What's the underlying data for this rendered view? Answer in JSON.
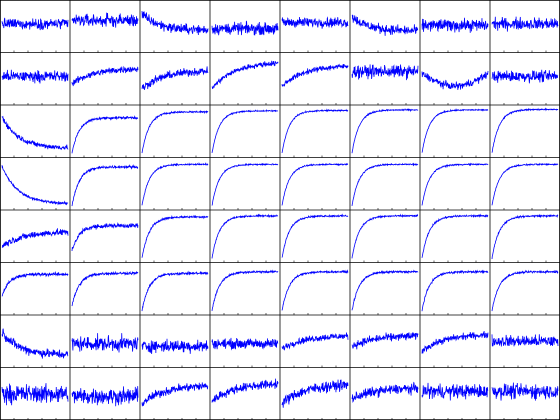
{
  "chart_data": {
    "type": "line",
    "rows": 8,
    "cols": 8,
    "line_color": "#0000ff",
    "axis_color": "#000000",
    "background": "#ffffff",
    "grid": false,
    "tick_labels": false,
    "title": "",
    "xlabel": "",
    "ylabel": "",
    "x_range": [
      0,
      1
    ],
    "y_range": [
      0,
      1
    ],
    "points_per_panel": 220,
    "panels": [
      {
        "row": 0,
        "col": 0,
        "shape": "flat",
        "level": 0.55,
        "amp": 0.32,
        "end": 0.55
      },
      {
        "row": 0,
        "col": 1,
        "shape": "flat",
        "level": 0.62,
        "amp": 0.38,
        "end": 0.62
      },
      {
        "row": 0,
        "col": 2,
        "shape": "decline",
        "level": 0.75,
        "amp": 0.3,
        "end": 0.42
      },
      {
        "row": 0,
        "col": 3,
        "shape": "flat",
        "level": 0.45,
        "amp": 0.35,
        "end": 0.45
      },
      {
        "row": 0,
        "col": 4,
        "shape": "flat",
        "level": 0.58,
        "amp": 0.3,
        "end": 0.58
      },
      {
        "row": 0,
        "col": 5,
        "shape": "decline",
        "level": 0.7,
        "amp": 0.3,
        "end": 0.4
      },
      {
        "row": 0,
        "col": 6,
        "shape": "flat",
        "level": 0.52,
        "amp": 0.38,
        "end": 0.52
      },
      {
        "row": 0,
        "col": 7,
        "shape": "flat",
        "level": 0.55,
        "amp": 0.36,
        "end": 0.55
      },
      {
        "row": 1,
        "col": 0,
        "shape": "flat",
        "level": 0.55,
        "amp": 0.34,
        "end": 0.55
      },
      {
        "row": 1,
        "col": 1,
        "shape": "rise",
        "level": 0.4,
        "amp": 0.2,
        "end": 0.72
      },
      {
        "row": 1,
        "col": 2,
        "shape": "rise",
        "level": 0.3,
        "amp": 0.24,
        "end": 0.68
      },
      {
        "row": 1,
        "col": 3,
        "shape": "rise",
        "level": 0.3,
        "amp": 0.16,
        "end": 0.85
      },
      {
        "row": 1,
        "col": 4,
        "shape": "rise",
        "level": 0.35,
        "amp": 0.16,
        "end": 0.78
      },
      {
        "row": 1,
        "col": 5,
        "shape": "flat",
        "level": 0.65,
        "amp": 0.38,
        "end": 0.65
      },
      {
        "row": 1,
        "col": 6,
        "shape": "dip",
        "level": 0.6,
        "amp": 0.22,
        "end": 0.6
      },
      {
        "row": 1,
        "col": 7,
        "shape": "flat",
        "level": 0.55,
        "amp": 0.34,
        "end": 0.55
      },
      {
        "row": 2,
        "col": 0,
        "shape": "decline",
        "level": 0.8,
        "amp": 0.16,
        "end": 0.15
      },
      {
        "row": 2,
        "col": 1,
        "shape": "sat",
        "level": 0.05,
        "amp": 0.08,
        "end": 0.78
      },
      {
        "row": 2,
        "col": 2,
        "shape": "sat",
        "level": 0.05,
        "amp": 0.05,
        "end": 0.9
      },
      {
        "row": 2,
        "col": 3,
        "shape": "sat",
        "level": 0.05,
        "amp": 0.04,
        "end": 0.92
      },
      {
        "row": 2,
        "col": 4,
        "shape": "sat",
        "level": 0.05,
        "amp": 0.04,
        "end": 0.93
      },
      {
        "row": 2,
        "col": 5,
        "shape": "sat",
        "level": 0.05,
        "amp": 0.04,
        "end": 0.94
      },
      {
        "row": 2,
        "col": 6,
        "shape": "sat",
        "level": 0.05,
        "amp": 0.04,
        "end": 0.94
      },
      {
        "row": 2,
        "col": 7,
        "shape": "sat",
        "level": 0.05,
        "amp": 0.04,
        "end": 0.95
      },
      {
        "row": 3,
        "col": 0,
        "shape": "decline",
        "level": 0.85,
        "amp": 0.08,
        "end": 0.08
      },
      {
        "row": 3,
        "col": 1,
        "shape": "sat",
        "level": 0.05,
        "amp": 0.08,
        "end": 0.85
      },
      {
        "row": 3,
        "col": 2,
        "shape": "sat",
        "level": 0.05,
        "amp": 0.04,
        "end": 0.9
      },
      {
        "row": 3,
        "col": 3,
        "shape": "sat",
        "level": 0.05,
        "amp": 0.04,
        "end": 0.9
      },
      {
        "row": 3,
        "col": 4,
        "shape": "sat",
        "level": 0.05,
        "amp": 0.04,
        "end": 0.9
      },
      {
        "row": 3,
        "col": 5,
        "shape": "sat",
        "level": 0.05,
        "amp": 0.04,
        "end": 0.9
      },
      {
        "row": 3,
        "col": 6,
        "shape": "sat",
        "level": 0.05,
        "amp": 0.04,
        "end": 0.9
      },
      {
        "row": 3,
        "col": 7,
        "shape": "sat",
        "level": 0.05,
        "amp": 0.04,
        "end": 0.9
      },
      {
        "row": 4,
        "col": 0,
        "shape": "rise",
        "level": 0.3,
        "amp": 0.2,
        "end": 0.6
      },
      {
        "row": 4,
        "col": 1,
        "shape": "sat",
        "level": 0.2,
        "amp": 0.14,
        "end": 0.72
      },
      {
        "row": 4,
        "col": 2,
        "shape": "sat",
        "level": 0.05,
        "amp": 0.06,
        "end": 0.9
      },
      {
        "row": 4,
        "col": 3,
        "shape": "sat",
        "level": 0.05,
        "amp": 0.05,
        "end": 0.92
      },
      {
        "row": 4,
        "col": 4,
        "shape": "sat",
        "level": 0.05,
        "amp": 0.05,
        "end": 0.92
      },
      {
        "row": 4,
        "col": 5,
        "shape": "sat",
        "level": 0.05,
        "amp": 0.05,
        "end": 0.92
      },
      {
        "row": 4,
        "col": 6,
        "shape": "sat",
        "level": 0.05,
        "amp": 0.05,
        "end": 0.92
      },
      {
        "row": 4,
        "col": 7,
        "shape": "sat",
        "level": 0.05,
        "amp": 0.05,
        "end": 0.92
      },
      {
        "row": 5,
        "col": 0,
        "shape": "sat",
        "level": 0.35,
        "amp": 0.1,
        "end": 0.8
      },
      {
        "row": 5,
        "col": 1,
        "shape": "sat",
        "level": 0.15,
        "amp": 0.08,
        "end": 0.82
      },
      {
        "row": 5,
        "col": 2,
        "shape": "sat",
        "level": 0.05,
        "amp": 0.07,
        "end": 0.82
      },
      {
        "row": 5,
        "col": 3,
        "shape": "sat",
        "level": 0.05,
        "amp": 0.06,
        "end": 0.85
      },
      {
        "row": 5,
        "col": 4,
        "shape": "sat",
        "level": 0.05,
        "amp": 0.06,
        "end": 0.85
      },
      {
        "row": 5,
        "col": 5,
        "shape": "sat",
        "level": 0.05,
        "amp": 0.06,
        "end": 0.85
      },
      {
        "row": 5,
        "col": 6,
        "shape": "sat",
        "level": 0.05,
        "amp": 0.06,
        "end": 0.85
      },
      {
        "row": 5,
        "col": 7,
        "shape": "sat",
        "level": 0.05,
        "amp": 0.06,
        "end": 0.85
      },
      {
        "row": 6,
        "col": 0,
        "shape": "decline",
        "level": 0.7,
        "amp": 0.28,
        "end": 0.22
      },
      {
        "row": 6,
        "col": 1,
        "shape": "flat",
        "level": 0.45,
        "amp": 0.45,
        "end": 0.45
      },
      {
        "row": 6,
        "col": 2,
        "shape": "flat",
        "level": 0.4,
        "amp": 0.38,
        "end": 0.4
      },
      {
        "row": 6,
        "col": 3,
        "shape": "flat",
        "level": 0.45,
        "amp": 0.3,
        "end": 0.45
      },
      {
        "row": 6,
        "col": 4,
        "shape": "rise",
        "level": 0.35,
        "amp": 0.2,
        "end": 0.62
      },
      {
        "row": 6,
        "col": 5,
        "shape": "rise",
        "level": 0.4,
        "amp": 0.24,
        "end": 0.62
      },
      {
        "row": 6,
        "col": 6,
        "shape": "rise",
        "level": 0.3,
        "amp": 0.2,
        "end": 0.65
      },
      {
        "row": 6,
        "col": 7,
        "shape": "flat",
        "level": 0.5,
        "amp": 0.36,
        "end": 0.5
      },
      {
        "row": 7,
        "col": 0,
        "shape": "flat",
        "level": 0.5,
        "amp": 0.55,
        "end": 0.5
      },
      {
        "row": 7,
        "col": 1,
        "shape": "flat",
        "level": 0.45,
        "amp": 0.5,
        "end": 0.45
      },
      {
        "row": 7,
        "col": 2,
        "shape": "rise",
        "level": 0.3,
        "amp": 0.26,
        "end": 0.68
      },
      {
        "row": 7,
        "col": 3,
        "shape": "rise",
        "level": 0.35,
        "amp": 0.26,
        "end": 0.72
      },
      {
        "row": 7,
        "col": 4,
        "shape": "rise",
        "level": 0.3,
        "amp": 0.32,
        "end": 0.7
      },
      {
        "row": 7,
        "col": 5,
        "shape": "rise",
        "level": 0.4,
        "amp": 0.3,
        "end": 0.62
      },
      {
        "row": 7,
        "col": 6,
        "shape": "flat",
        "level": 0.55,
        "amp": 0.42,
        "end": 0.55
      },
      {
        "row": 7,
        "col": 7,
        "shape": "flat",
        "level": 0.55,
        "amp": 0.45,
        "end": 0.55
      }
    ]
  }
}
